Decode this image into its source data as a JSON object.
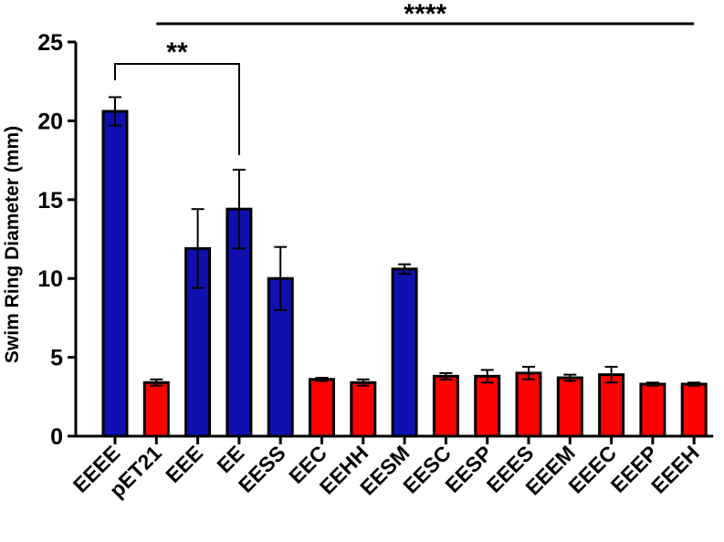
{
  "chart_data": {
    "type": "bar",
    "title": "",
    "xlabel": "",
    "ylabel": "Swim Ring Diameter (mm)",
    "ylim": [
      0,
      25
    ],
    "yticks": [
      0,
      5,
      10,
      15,
      20,
      25
    ],
    "grid": false,
    "categories": [
      "EEEE",
      "pET21",
      "EEE",
      "EE",
      "EESS",
      "EEC",
      "EEHH",
      "EESM",
      "EESC",
      "EESP",
      "EEES",
      "EEEM",
      "EEEC",
      "EEEP",
      "EEEH"
    ],
    "values": [
      20.6,
      3.4,
      11.9,
      14.4,
      10.0,
      3.6,
      3.4,
      10.6,
      3.8,
      3.8,
      4.0,
      3.7,
      3.9,
      3.3,
      3.3
    ],
    "errors": [
      0.9,
      0.2,
      2.5,
      2.5,
      2.0,
      0.1,
      0.2,
      0.3,
      0.2,
      0.4,
      0.4,
      0.2,
      0.5,
      0.1,
      0.1
    ],
    "bar_colors": [
      "#1010b0",
      "#ff0000",
      "#1010b0",
      "#1010b0",
      "#1010b0",
      "#ff0000",
      "#ff0000",
      "#1010b0",
      "#ff0000",
      "#ff0000",
      "#ff0000",
      "#ff0000",
      "#ff0000",
      "#ff0000",
      "#ff0000"
    ],
    "significance": [
      {
        "label": "****",
        "from": "pET21",
        "to": "EEEH",
        "type": "line"
      },
      {
        "label": "**",
        "from": "EEEE",
        "to": "EE",
        "type": "bracket"
      }
    ]
  }
}
